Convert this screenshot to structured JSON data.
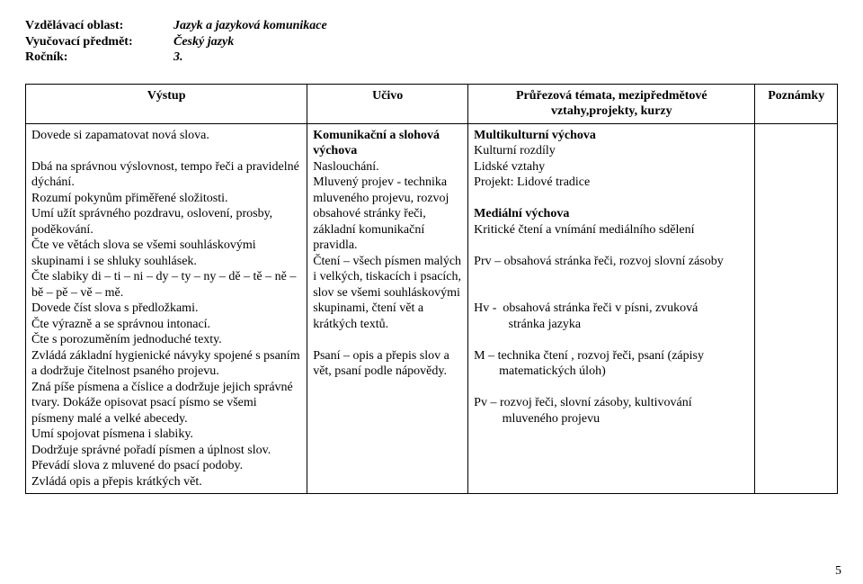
{
  "header": {
    "rows": [
      {
        "label": "Vzdělávací oblast:",
        "value": "Jazyk a jazyková komunikace",
        "italic": true
      },
      {
        "label": "Vyučovací předmět:",
        "value": "Český jazyk",
        "italic": true
      },
      {
        "label": "Ročník:",
        "value": "3.",
        "italic": true
      }
    ]
  },
  "table": {
    "headers": {
      "vystup": "Výstup",
      "ucivo": "Učivo",
      "pruz": "Průřezová témata, mezipředmětové vztahy,projekty, kurzy",
      "pozn": "Poznámky"
    },
    "cells": {
      "vystup": "Dovede si zapamatovat nová slova.\n\nDbá na správnou výslovnost, tempo řeči a pravidelné dýchání.\nRozumí pokynům přiměřené složitosti.\nUmí užít správného pozdravu, oslovení, prosby, poděkování.\nČte ve větách slova se všemi souhláskovými skupinami i se shluky souhlásek.\nČte slabiky di – ti – ni – dy – ty – ny – dě – tě – ně – bě – pě – vě – mě.\nDovede číst slova s předložkami.\nČte výrazně a se správnou intonací.\nČte s porozuměním jednoduché texty.\nZvládá základní hygienické návyky spojené s psaním a dodržuje čitelnost psaného projevu.\nZná  píše písmena a číslice a dodržuje jejich správné tvary. Dokáže opisovat psací písmo se všemi písmeny malé a velké abecedy.\nUmí spojovat písmena i slabiky.\nDodržuje správné pořadí písmen a úplnost slov.\nPřevádí slova z mluvené do psací podoby.\nZvládá opis a přepis krátkých vět.",
      "ucivo_bold1": "Komunikační a slohová výchova",
      "ucivo_rest": "Naslouchání.\nMluvený projev  - technika mluveného projevu, rozvoj obsahové stránky řeči, základní komunikační pravidla.\nČtení – všech písmen malých i velkých, tiskacích i psacích, slov se všemi souhláskovými skupinami, čtení vět a krátkých textů.\n\nPsaní – opis a přepis slov a vět, psaní podle nápovědy.",
      "pruz_b1": "Multikulturní výchova",
      "pruz_t1": "Kulturní rozdíly\nLidské vztahy\nProjekt: Lidové tradice\n",
      "pruz_b2": "Mediální výchova",
      "pruz_t2": "Kritické čtení a vnímání mediálního sdělení\n\nPrv – obsahová stránka řeči, rozvoj slovní zásoby\n\n\nHv -  obsahová stránka řeči v písni, zvuková\n           stránka jazyka\n\nM – technika čtení , rozvoj řeči, psaní (zápisy\n        matematických úloh)\n\nPv – rozvoj řeči, slovní zásoby, kultivování\n         mluveného projevu",
      "pozn": ""
    }
  },
  "pageNumber": "5"
}
